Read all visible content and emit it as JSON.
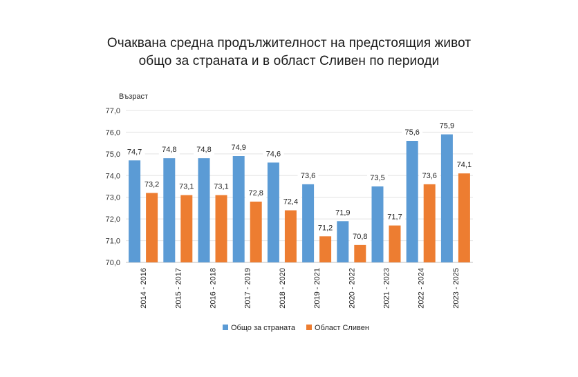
{
  "chart_data": {
    "type": "bar",
    "title_lines": [
      "Очаквана средна продължителност на предстоящия живот",
      "общо за страната и в област Сливен по периоди"
    ],
    "ylabel": "Възраст",
    "xlabel": "",
    "ylim": [
      70.0,
      77.0
    ],
    "yticks": [
      "70,0",
      "71,0",
      "72,0",
      "73,0",
      "74,0",
      "75,0",
      "76,0",
      "77,0"
    ],
    "grid": true,
    "legend_position": "bottom-center",
    "categories": [
      "2014 - 2016",
      "2015 - 2017",
      "2016 - 2018",
      "2017 - 2019",
      "2018 - 2020",
      "2019 - 2021",
      "2020 - 2022",
      "2021 - 2023",
      "2022 - 2024",
      "2023 - 2025"
    ],
    "series": [
      {
        "name": "Общо за страната",
        "color": "#5B9BD5",
        "values": [
          74.7,
          74.8,
          74.8,
          74.9,
          74.6,
          73.6,
          71.9,
          73.5,
          75.6,
          75.9
        ],
        "labels": [
          "74,7",
          "74,8",
          "74,8",
          "74,9",
          "74,6",
          "73,6",
          "71,9",
          "73,5",
          "75,6",
          "75,9"
        ]
      },
      {
        "name": "Област Сливен",
        "color": "#ED7D31",
        "values": [
          73.2,
          73.1,
          73.1,
          72.8,
          72.4,
          71.2,
          70.8,
          71.7,
          73.6,
          74.1
        ],
        "labels": [
          "73,2",
          "73,1",
          "73,1",
          "72,8",
          "72,4",
          "71,2",
          "70,8",
          "71,7",
          "73,6",
          "74,1"
        ]
      }
    ]
  }
}
